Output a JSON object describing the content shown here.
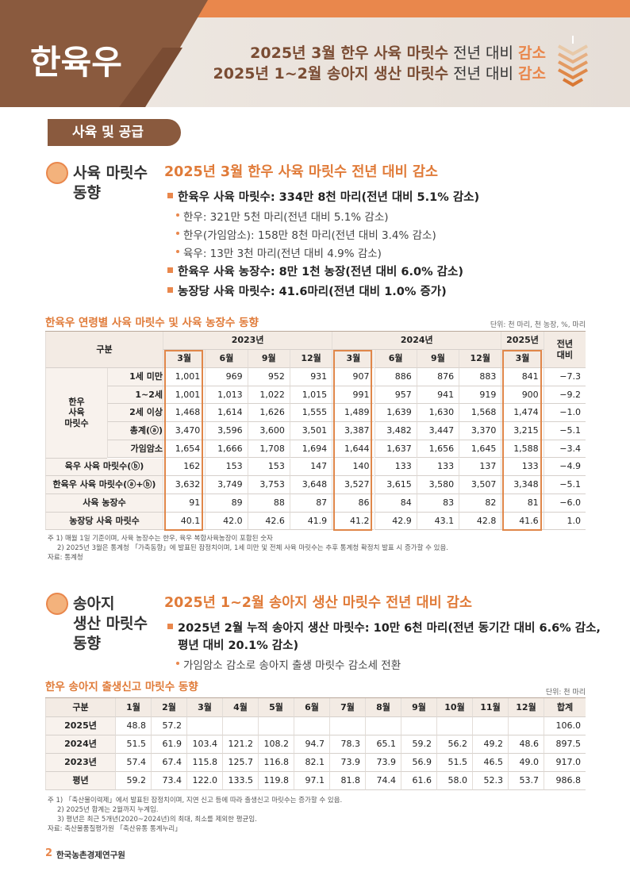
{
  "header": {
    "badge": "한육우",
    "lines": [
      {
        "lead": "2025년 3월 한우 사육 마릿수",
        "mid": "전년 대비",
        "accent": "감소"
      },
      {
        "lead": "2025년 1~2월 송아지 생산 마릿수",
        "mid": "전년 대비",
        "accent": "감소"
      }
    ]
  },
  "section_title": "사육 및 공급",
  "topics": [
    {
      "heading": [
        "사육 마릿수",
        "동향"
      ],
      "title": "2025년 3월 한우 사육 마릿수 전년 대비 감소",
      "items": [
        {
          "lines": [
            "한육우 사육 마릿수: 334만 8천 마리(전년 대비 5.1% 감소)"
          ],
          "subitems": [
            "한우: 321만 5천 마리(전년 대비 5.1% 감소)",
            "한우(가임암소): 158만 8천 마리(전년 대비 3.4% 감소)",
            "육우: 13만 3천 마리(전년 대비 4.9% 감소)"
          ]
        },
        {
          "lines": [
            "한육우 사육 농장수: 8만 1천 농장(전년 대비 6.0% 감소)"
          ],
          "subitems": []
        },
        {
          "lines": [
            "농장당 사육 마릿수: 41.6마리(전년 대비 1.0% 증가)"
          ],
          "subitems": []
        }
      ]
    },
    {
      "heading": [
        "송아지",
        "생산 마릿수",
        "동향"
      ],
      "title": "2025년 1~2월 송아지 생산 마릿수 전년 대비 감소",
      "items": [
        {
          "lines": [
            "2025년 2월 누적 송아지 생산 마릿수: 10만 6천 마리(전년 동기간 대비 6.6% 감소,",
            "평년 대비 20.1% 감소)"
          ],
          "subitems": [
            "가임암소 감소로 송아지 출생 마릿수 감소세 전환"
          ]
        }
      ]
    }
  ],
  "table1": {
    "title": "한육우 연령별 사육 마릿수 및 사육 농장수 동향",
    "unit": "단위: 천 마리, 천 농장, %, 마리",
    "corner": "구분",
    "years": [
      {
        "year": "2023년",
        "months": [
          "3월",
          "6월",
          "9월",
          "12월"
        ]
      },
      {
        "year": "2024년",
        "months": [
          "3월",
          "6월",
          "9월",
          "12월"
        ]
      },
      {
        "year": "2025년",
        "months": [
          "3월"
        ]
      }
    ],
    "change": [
      "전년",
      "대비"
    ],
    "group": {
      "label": [
        "한우",
        "사육",
        "마릿수"
      ],
      "rows": [
        {
          "label": "1세 미만",
          "values": [
            "1,001",
            "969",
            "952",
            "931",
            "907",
            "886",
            "876",
            "883",
            "841",
            "−7.3"
          ]
        },
        {
          "label": "1~2세",
          "values": [
            "1,001",
            "1,013",
            "1,022",
            "1,015",
            "991",
            "957",
            "941",
            "919",
            "900",
            "−9.2"
          ]
        },
        {
          "label": "2세 이상",
          "values": [
            "1,468",
            "1,614",
            "1,626",
            "1,555",
            "1,489",
            "1,639",
            "1,630",
            "1,568",
            "1,474",
            "−1.0"
          ]
        },
        {
          "label": "총계(ⓐ)",
          "values": [
            "3,470",
            "3,596",
            "3,600",
            "3,501",
            "3,387",
            "3,482",
            "3,447",
            "3,370",
            "3,215",
            "−5.1"
          ]
        },
        {
          "label": "가임암소",
          "values": [
            "1,654",
            "1,666",
            "1,708",
            "1,694",
            "1,644",
            "1,637",
            "1,656",
            "1,645",
            "1,588",
            "−3.4"
          ]
        }
      ]
    },
    "rows": [
      {
        "label": "육우 사육 마릿수(ⓑ)",
        "values": [
          "162",
          "153",
          "153",
          "147",
          "140",
          "133",
          "133",
          "137",
          "133",
          "−4.9"
        ]
      },
      {
        "label": "한육우 사육 마릿수(ⓐ+ⓑ)",
        "values": [
          "3,632",
          "3,749",
          "3,753",
          "3,648",
          "3,527",
          "3,615",
          "3,580",
          "3,507",
          "3,348",
          "−5.1"
        ]
      },
      {
        "label": "사육 농장수",
        "values": [
          "91",
          "89",
          "88",
          "87",
          "86",
          "84",
          "83",
          "82",
          "81",
          "−6.0"
        ]
      },
      {
        "label": "농장당 사육 마릿수",
        "values": [
          "40.1",
          "42.0",
          "42.6",
          "41.9",
          "41.2",
          "42.9",
          "43.1",
          "42.8",
          "41.6",
          "1.0"
        ]
      }
    ],
    "notes": [
      "주 1) 매월 1일 기준이며, 사육 농장수는 한우, 육우 복합사육농장이 포함된 숫자",
      "2) 2025년 3월은 통계청 「가축동향」에 발표된 잠정치이며, 1세 미만 및 전체 사육 마릿수는 추후 통계청 확정치 발표 시 증가할 수 있음.",
      "자료: 통계청"
    ]
  },
  "table2": {
    "title": "한우 송아지 출생신고 마릿수 동향",
    "unit": "단위: 천 마리",
    "columns": [
      "구분",
      "1월",
      "2월",
      "3월",
      "4월",
      "5월",
      "6월",
      "7월",
      "8월",
      "9월",
      "10월",
      "11월",
      "12월",
      "합계"
    ],
    "rows": [
      [
        "2025년",
        "48.8",
        "57.2",
        null,
        null,
        null,
        null,
        null,
        null,
        null,
        null,
        null,
        null,
        "106.0"
      ],
      [
        "2024년",
        "51.5",
        "61.9",
        "103.4",
        "121.2",
        "108.2",
        "94.7",
        "78.3",
        "65.1",
        "59.2",
        "56.2",
        "49.2",
        "48.6",
        "897.5"
      ],
      [
        "2023년",
        "57.4",
        "67.4",
        "115.8",
        "125.7",
        "116.8",
        "82.1",
        "73.9",
        "73.9",
        "56.9",
        "51.5",
        "46.5",
        "49.0",
        "917.0"
      ],
      [
        "평년",
        "59.2",
        "73.4",
        "122.0",
        "133.5",
        "119.8",
        "97.1",
        "81.8",
        "74.4",
        "61.6",
        "58.0",
        "52.3",
        "53.7",
        "986.8"
      ]
    ],
    "notes": [
      "주 1) 「축산물이력제」에서 발표된 잠정치이며, 지연 신고 등에 따라 출생신고 마릿수는 증가할 수 있음.",
      "2) 2025년 합계는 2월까지 누계임.",
      "3) 평년은 최근 5개년(2020~2024년)의 최대, 최소를 제외한 평균임.",
      "자료: 축산물품질평가원 「축산유통 통계누리」"
    ]
  },
  "footer": {
    "page": "2",
    "org": "한국농촌경제연구원"
  }
}
